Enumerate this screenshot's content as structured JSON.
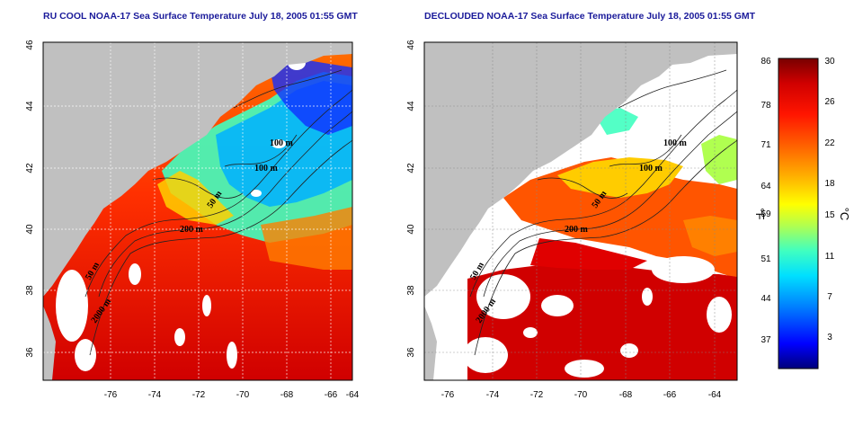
{
  "maps": [
    {
      "title": "RU COOL NOAA-17 Sea Surface Temperature July 18, 2005 01:55 GMT",
      "contour_labels": [
        "100 m",
        "100 m",
        "50 m",
        "200 m",
        "50 m",
        "2000 m"
      ]
    },
    {
      "title": "DECLOUDED NOAA-17 Sea Surface Temperature July 18, 2005 01:55 GMT",
      "contour_labels": [
        "100 m",
        "100 m",
        "50 m",
        "200 m",
        "50 m",
        "2000 m"
      ]
    }
  ],
  "lon_ticks": [
    "-76",
    "-74",
    "-72",
    "-70",
    "-68",
    "-66",
    "-64"
  ],
  "lat_ticks": [
    "46",
    "44",
    "42",
    "40",
    "38",
    "36"
  ],
  "colorbar": {
    "fahrenheit_ticks": [
      "86",
      "78",
      "71",
      "64",
      "59",
      "51",
      "44",
      "37"
    ],
    "celsius_ticks": [
      "30",
      "26",
      "22",
      "18",
      "15",
      "11",
      "7",
      "3"
    ],
    "fahrenheit_unit": "°F",
    "celsius_unit": "°C"
  },
  "colors": {
    "land": "#c0c0c0",
    "cloud": "#ffffff",
    "title": "#1a1a9a",
    "colormap": [
      "#00007a",
      "#0000ff",
      "#0080ff",
      "#00e0ff",
      "#40ffc0",
      "#b0ff50",
      "#ffff00",
      "#ffb000",
      "#ff6000",
      "#ff1500",
      "#d00000",
      "#780000"
    ]
  }
}
